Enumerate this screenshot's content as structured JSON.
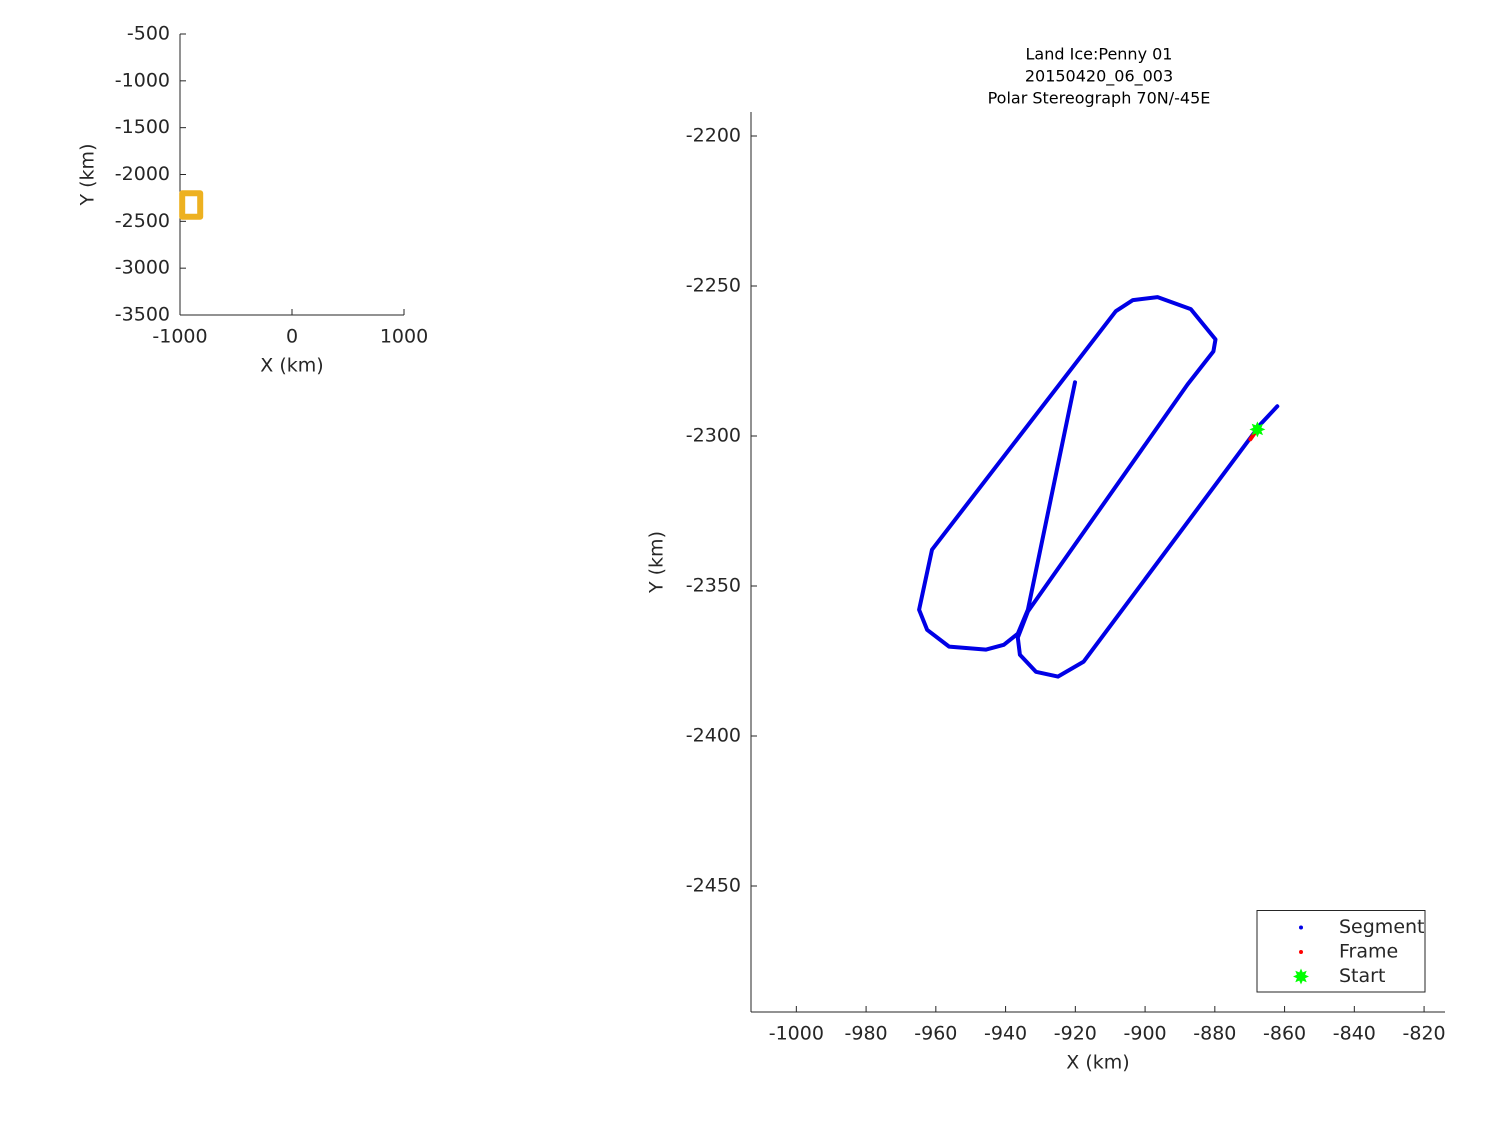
{
  "chart_data": [
    {
      "type": "line",
      "xlabel": "X (km)",
      "ylabel": "Y (km)",
      "xlim": [
        -1000,
        1000
      ],
      "xticks": [
        -1000,
        0,
        1000
      ],
      "ylim": [
        -3500,
        -500
      ],
      "yticks": [
        -500,
        -1000,
        -1500,
        -2000,
        -2500,
        -3000,
        -3500
      ],
      "series": [
        {
          "color": "#edb120",
          "style": "line",
          "width": 6,
          "x": [
            -980,
            -820,
            -820,
            -980,
            -980
          ],
          "y": [
            -2200,
            -2200,
            -2450,
            -2450,
            -2200
          ]
        }
      ]
    },
    {
      "type": "line",
      "title": [
        "Land Ice:Penny 01",
        "20150420_06_003",
        "Polar Stereograph 70N/-45E"
      ],
      "xlabel": "X (km)",
      "ylabel": "Y (km)",
      "xlim": [
        -1013,
        -814
      ],
      "xticks": [
        -1000,
        -980,
        -960,
        -940,
        -920,
        -900,
        -880,
        -860,
        -840,
        -820
      ],
      "ylim": [
        -2492,
        -2192
      ],
      "yticks": [
        -2200,
        -2250,
        -2300,
        -2350,
        -2400,
        -2450
      ],
      "legend": "lower right",
      "series": [
        {
          "name": "Segment",
          "color": "#0000e6",
          "style": "line",
          "width": 4,
          "x": [
            -862.1,
            -866.9,
            -917.6,
            -925.0,
            -931.3,
            -935.9,
            -936.5,
            -933.6,
            -887.8,
            -880.4,
            -879.8,
            -886.9,
            -896.4,
            -903.5,
            -908.4,
            -961.1,
            -964.8,
            -962.5,
            -956.2,
            -945.6,
            -940.5,
            -936.5,
            -933.6,
            -920.1
          ],
          "y": [
            -2290.1,
            -2296.1,
            -2375.2,
            -2380.2,
            -2378.6,
            -2372.9,
            -2367.2,
            -2358.5,
            -2282.8,
            -2271.8,
            -2267.8,
            -2257.7,
            -2253.7,
            -2254.7,
            -2258.4,
            -2337.9,
            -2357.9,
            -2364.6,
            -2370.2,
            -2371.2,
            -2369.6,
            -2365.9,
            -2357.9,
            -2282.1
          ]
        },
        {
          "name": "Frame",
          "color": "#ff0000",
          "style": "line",
          "width": 4,
          "x": [
            -869.8,
            -867.8
          ],
          "y": [
            -2301.1,
            -2297.7
          ]
        },
        {
          "name": "Start",
          "color": "#00ff00",
          "style": "star",
          "width": 4,
          "x": [
            -867.8
          ],
          "y": [
            -2297.8
          ]
        }
      ]
    }
  ]
}
